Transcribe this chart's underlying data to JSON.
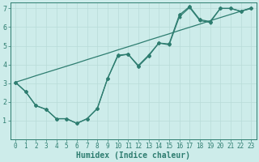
{
  "xlabel": "Humidex (Indice chaleur)",
  "bg_color": "#cdecea",
  "line_color": "#2e7d70",
  "grid_color": "#b8dbd8",
  "spine_color": "#2e7d70",
  "xlim": [
    -0.5,
    23.5
  ],
  "ylim": [
    0,
    7.3
  ],
  "xticks": [
    0,
    1,
    2,
    3,
    4,
    5,
    6,
    7,
    8,
    9,
    10,
    11,
    12,
    13,
    14,
    15,
    16,
    17,
    18,
    19,
    20,
    21,
    22,
    23
  ],
  "yticks": [
    1,
    2,
    3,
    4,
    5,
    6,
    7
  ],
  "line1_x": [
    0,
    1,
    2,
    3,
    4,
    5,
    6,
    7,
    8,
    9,
    10,
    11,
    12,
    13,
    14,
    15,
    16,
    17,
    18,
    19,
    20,
    21,
    22,
    23
  ],
  "line1_y": [
    3.05,
    2.55,
    1.8,
    1.6,
    1.1,
    1.1,
    0.85,
    1.1,
    1.65,
    3.25,
    4.5,
    4.55,
    3.9,
    4.45,
    5.15,
    5.1,
    6.65,
    7.1,
    6.4,
    6.3,
    7.0,
    7.0,
    6.85,
    7.0
  ],
  "line2_x": [
    0,
    1,
    2,
    3,
    4,
    5,
    6,
    7,
    8,
    9,
    10,
    11,
    12,
    13,
    14,
    15,
    16,
    17,
    18,
    19,
    20,
    21,
    22,
    23
  ],
  "line2_y": [
    3.05,
    2.55,
    1.8,
    1.6,
    1.1,
    1.1,
    0.85,
    1.1,
    1.65,
    3.25,
    4.45,
    4.55,
    3.95,
    4.5,
    5.15,
    5.05,
    6.55,
    7.05,
    6.35,
    6.25,
    7.0,
    7.0,
    6.85,
    7.0
  ],
  "line3_x": [
    0,
    1,
    2,
    3,
    4,
    5,
    6,
    7,
    8,
    9,
    10,
    11,
    12,
    13,
    14,
    15,
    16,
    17,
    18,
    19,
    20,
    21,
    22,
    23
  ],
  "line3_y": [
    3.05,
    3.22,
    3.4,
    3.57,
    3.74,
    3.91,
    4.08,
    4.26,
    4.43,
    4.6,
    4.78,
    4.95,
    5.12,
    5.3,
    5.47,
    5.64,
    5.82,
    5.99,
    6.16,
    6.34,
    6.51,
    6.68,
    6.85,
    7.03
  ],
  "xlabel_fontsize": 7,
  "tick_fontsize": 5.5,
  "linewidth": 0.9,
  "markersize": 2.0
}
